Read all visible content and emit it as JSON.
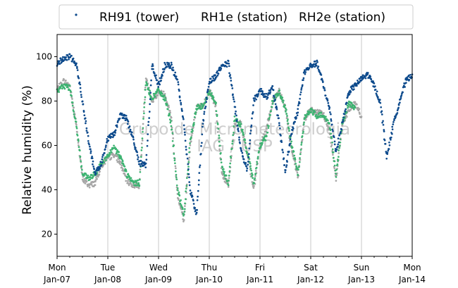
{
  "chart_data": {
    "type": "scatter",
    "title": "",
    "xlabel": "",
    "ylabel": "Relative humidity (%)",
    "xlim": [
      "2020-01-07 00:00",
      "2020-01-14 00:00"
    ],
    "ylim": [
      10,
      110
    ],
    "yticks": [
      20,
      40,
      60,
      80,
      100
    ],
    "xticks": [
      {
        "day": "Mon",
        "date": "Jan-07"
      },
      {
        "day": "Tue",
        "date": "Jan-08"
      },
      {
        "day": "Wed",
        "date": "Jan-09"
      },
      {
        "day": "Thu",
        "date": "Jan-10"
      },
      {
        "day": "Fri",
        "date": "Jan-11"
      },
      {
        "day": "Sat",
        "date": "Jan-12"
      },
      {
        "day": "Sun",
        "date": "Jan-13"
      },
      {
        "day": "Mon",
        "date": "Jan-14"
      }
    ],
    "grid": "x",
    "legend_position": "top",
    "watermark": [
      "Grupo de Micrometeorologia",
      "IAG / USP"
    ],
    "series": [
      {
        "name": "RH91 (tower)",
        "color": "#0d4a8c",
        "marker": "dot",
        "points": [
          [
            "2020-01-07 00:00",
            97
          ],
          [
            "2020-01-07 03:00",
            99
          ],
          [
            "2020-01-07 06:00",
            100
          ],
          [
            "2020-01-07 09:00",
            97
          ],
          [
            "2020-01-07 12:00",
            80
          ],
          [
            "2020-01-07 15:00",
            62
          ],
          [
            "2020-01-07 18:00",
            47
          ],
          [
            "2020-01-07 21:00",
            52
          ],
          [
            "2020-01-08 00:00",
            63
          ],
          [
            "2020-01-08 03:00",
            65
          ],
          [
            "2020-01-08 06:00",
            74
          ],
          [
            "2020-01-08 09:00",
            72
          ],
          [
            "2020-01-08 12:00",
            63
          ],
          [
            "2020-01-08 15:00",
            52
          ],
          [
            "2020-01-08 18:00",
            51
          ],
          [
            "2020-01-08 21:00",
            96
          ],
          [
            "2020-01-09 00:00",
            87
          ],
          [
            "2020-01-09 03:00",
            96
          ],
          [
            "2020-01-09 06:00",
            96
          ],
          [
            "2020-01-09 09:00",
            89
          ],
          [
            "2020-01-09 12:00",
            70
          ],
          [
            "2020-01-09 15:00",
            40
          ],
          [
            "2020-01-09 18:00",
            29
          ],
          [
            "2020-01-09 21:00",
            70
          ],
          [
            "2020-01-10 00:00",
            89
          ],
          [
            "2020-01-10 03:00",
            91
          ],
          [
            "2020-01-10 06:00",
            96
          ],
          [
            "2020-01-10 09:00",
            97
          ],
          [
            "2020-01-10 12:00",
            78
          ],
          [
            "2020-01-10 15:00",
            58
          ],
          [
            "2020-01-10 18:00",
            49
          ],
          [
            "2020-01-10 21:00",
            80
          ],
          [
            "2020-01-11 00:00",
            85
          ],
          [
            "2020-01-11 03:00",
            82
          ],
          [
            "2020-01-11 06:00",
            86
          ],
          [
            "2020-01-11 09:00",
            70
          ],
          [
            "2020-01-11 12:00",
            48
          ],
          [
            "2020-01-11 15:00",
            66
          ],
          [
            "2020-01-11 18:00",
            76
          ],
          [
            "2020-01-11 21:00",
            93
          ],
          [
            "2020-01-12 00:00",
            96
          ],
          [
            "2020-01-12 03:00",
            97
          ],
          [
            "2020-01-12 06:00",
            87
          ],
          [
            "2020-01-12 09:00",
            76
          ],
          [
            "2020-01-12 12:00",
            57
          ],
          [
            "2020-01-12 15:00",
            70
          ],
          [
            "2020-01-12 18:00",
            84
          ],
          [
            "2020-01-12 21:00",
            87
          ],
          [
            "2020-01-13 00:00",
            90
          ],
          [
            "2020-01-13 03:00",
            92
          ],
          [
            "2020-01-13 06:00",
            87
          ],
          [
            "2020-01-13 09:00",
            79
          ],
          [
            "2020-01-13 12:00",
            55
          ],
          [
            "2020-01-13 15:00",
            69
          ],
          [
            "2020-01-13 18:00",
            80
          ],
          [
            "2020-01-13 21:00",
            89
          ],
          [
            "2020-01-14 00:00",
            92
          ]
        ]
      },
      {
        "name": "RH1e (station)",
        "color": "#3cb371",
        "marker": "dot",
        "points": [
          [
            "2020-01-07 00:00",
            84
          ],
          [
            "2020-01-07 03:00",
            87
          ],
          [
            "2020-01-07 06:00",
            86
          ],
          [
            "2020-01-07 09:00",
            70
          ],
          [
            "2020-01-07 12:00",
            47
          ],
          [
            "2020-01-07 15:00",
            45
          ],
          [
            "2020-01-07 18:00",
            47
          ],
          [
            "2020-01-07 21:00",
            52
          ],
          [
            "2020-01-08 00:00",
            55
          ],
          [
            "2020-01-08 03:00",
            59
          ],
          [
            "2020-01-08 06:00",
            55
          ],
          [
            "2020-01-08 09:00",
            47
          ],
          [
            "2020-01-08 12:00",
            43
          ],
          [
            "2020-01-08 15:00",
            43
          ],
          [
            "2020-01-08 18:00",
            88
          ],
          [
            "2020-01-08 21:00",
            81
          ],
          [
            "2020-01-09 00:00",
            85
          ],
          [
            "2020-01-09 03:00",
            81
          ],
          [
            "2020-01-09 06:00",
            70
          ],
          [
            "2020-01-09 09:00",
            40
          ],
          [
            "2020-01-09 12:00",
            28
          ],
          [
            "2020-01-09 15:00",
            62
          ],
          [
            "2020-01-09 18:00",
            77
          ],
          [
            "2020-01-09 21:00",
            78
          ],
          [
            "2020-01-10 00:00",
            84
          ],
          [
            "2020-01-10 03:00",
            80
          ],
          [
            "2020-01-10 06:00",
            50
          ],
          [
            "2020-01-10 09:00",
            43
          ],
          [
            "2020-01-10 12:00",
            72
          ],
          [
            "2020-01-10 15:00",
            69
          ],
          [
            "2020-01-10 18:00",
            57
          ],
          [
            "2020-01-10 21:00",
            43
          ],
          [
            "2020-01-11 00:00",
            60
          ],
          [
            "2020-01-11 03:00",
            64
          ],
          [
            "2020-01-11 06:00",
            80
          ],
          [
            "2020-01-11 09:00",
            84
          ],
          [
            "2020-01-11 12:00",
            77
          ],
          [
            "2020-01-11 15:00",
            60
          ],
          [
            "2020-01-11 18:00",
            47
          ],
          [
            "2020-01-11 21:00",
            72
          ],
          [
            "2020-01-12 00:00",
            76
          ],
          [
            "2020-01-12 03:00",
            73
          ],
          [
            "2020-01-12 06:00",
            74
          ],
          [
            "2020-01-12 09:00",
            69
          ],
          [
            "2020-01-12 12:00",
            47
          ],
          [
            "2020-01-12 15:00",
            70
          ],
          [
            "2020-01-12 18:00",
            79
          ],
          [
            "2020-01-12 21:00",
            77
          ]
        ]
      },
      {
        "name": "RH2e (station)",
        "color": "#a6a6a6",
        "marker": "dot",
        "points": [
          [
            "2020-01-07 00:00",
            85
          ],
          [
            "2020-01-07 03:00",
            89
          ],
          [
            "2020-01-07 06:00",
            87
          ],
          [
            "2020-01-07 09:00",
            70
          ],
          [
            "2020-01-07 12:00",
            45
          ],
          [
            "2020-01-07 15:00",
            42
          ],
          [
            "2020-01-07 18:00",
            43
          ],
          [
            "2020-01-07 21:00",
            51
          ],
          [
            "2020-01-08 00:00",
            54
          ],
          [
            "2020-01-08 03:00",
            56
          ],
          [
            "2020-01-08 06:00",
            52
          ],
          [
            "2020-01-08 09:00",
            44
          ],
          [
            "2020-01-08 12:00",
            42
          ],
          [
            "2020-01-08 15:00",
            42
          ],
          [
            "2020-01-08 18:00",
            90
          ],
          [
            "2020-01-08 21:00",
            80
          ],
          [
            "2020-01-09 00:00",
            84
          ],
          [
            "2020-01-09 03:00",
            83
          ],
          [
            "2020-01-09 06:00",
            73
          ],
          [
            "2020-01-09 09:00",
            38
          ],
          [
            "2020-01-09 12:00",
            26
          ],
          [
            "2020-01-09 15:00",
            60
          ],
          [
            "2020-01-09 18:00",
            77
          ],
          [
            "2020-01-09 21:00",
            78
          ],
          [
            "2020-01-10 00:00",
            85
          ],
          [
            "2020-01-10 03:00",
            78
          ],
          [
            "2020-01-10 06:00",
            47
          ],
          [
            "2020-01-10 09:00",
            42
          ],
          [
            "2020-01-10 12:00",
            70
          ],
          [
            "2020-01-10 15:00",
            70
          ],
          [
            "2020-01-10 18:00",
            56
          ],
          [
            "2020-01-10 21:00",
            40
          ],
          [
            "2020-01-11 00:00",
            60
          ],
          [
            "2020-01-11 03:00",
            67
          ],
          [
            "2020-01-11 06:00",
            80
          ],
          [
            "2020-01-11 09:00",
            85
          ],
          [
            "2020-01-11 12:00",
            77
          ],
          [
            "2020-01-11 15:00",
            57
          ],
          [
            "2020-01-11 18:00",
            46
          ],
          [
            "2020-01-11 21:00",
            72
          ],
          [
            "2020-01-12 00:00",
            76
          ],
          [
            "2020-01-12 03:00",
            75
          ],
          [
            "2020-01-12 06:00",
            74
          ],
          [
            "2020-01-12 09:00",
            66
          ],
          [
            "2020-01-12 12:00",
            45
          ],
          [
            "2020-01-12 15:00",
            70
          ],
          [
            "2020-01-12 18:00",
            76
          ],
          [
            "2020-01-12 21:00",
            79
          ],
          [
            "2020-01-13 00:00",
            73
          ]
        ]
      }
    ]
  }
}
